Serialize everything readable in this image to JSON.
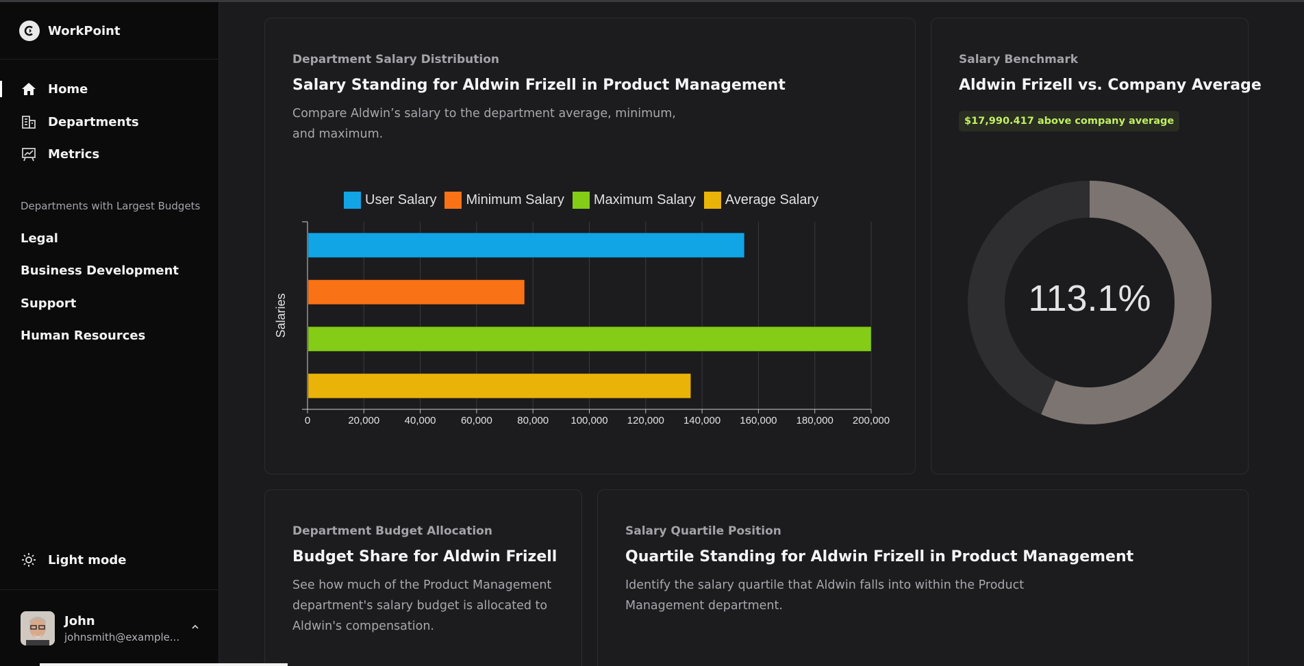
{
  "app": {
    "name": "WorkPoint"
  },
  "sidebar": {
    "nav": [
      {
        "label": "Home",
        "icon": "home-icon",
        "active": true
      },
      {
        "label": "Departments",
        "icon": "building-icon",
        "active": false
      },
      {
        "label": "Metrics",
        "icon": "chart-board-icon",
        "active": false
      }
    ],
    "section_label": "Departments with Largest Budgets",
    "departments": [
      "Legal",
      "Business Development",
      "Support",
      "Human Resources"
    ],
    "theme_toggle": "Light mode",
    "user": {
      "name": "John",
      "email": "johnsmith@example..."
    }
  },
  "cards": {
    "distribution": {
      "eyebrow": "Department Salary Distribution",
      "title": "Salary Standing for Aldwin Frizell in Product Management",
      "description": "Compare Aldwin’s salary to the department average, minimum, and maximum."
    },
    "benchmark": {
      "eyebrow": "Salary Benchmark",
      "title": "Aldwin Frizell vs. Company Average",
      "badge": "$17,990.417 above company average",
      "percent_label": "113.1%",
      "ring_fraction": 0.565,
      "colors": {
        "fill": "#7b7470",
        "track": "#2e2e31"
      }
    },
    "budget": {
      "eyebrow": "Department Budget Allocation",
      "title": "Budget Share for Aldwin Frizell",
      "description": "See how much of the Product Management department's salary budget is allocated to Aldwin's compensation."
    },
    "quartile": {
      "eyebrow": "Salary Quartile Position",
      "title": "Quartile Standing for Aldwin Frizell in Product Management",
      "description": "Identify the salary quartile that Aldwin falls into within the Product Management department."
    }
  },
  "chart_data": {
    "type": "bar",
    "orientation": "horizontal",
    "ylabel": "Salaries",
    "xlim": [
      0,
      200000
    ],
    "xticks": [
      "0",
      "20,000",
      "40,000",
      "60,000",
      "80,000",
      "100,000",
      "120,000",
      "140,000",
      "160,000",
      "180,000",
      "200,000"
    ],
    "grid": true,
    "legend_position": "top",
    "series": [
      {
        "name": "User Salary",
        "value": 155000,
        "color": "#11a5e6"
      },
      {
        "name": "Minimum Salary",
        "value": 77000,
        "color": "#f97316"
      },
      {
        "name": "Maximum Salary",
        "value": 200000,
        "color": "#84cc16"
      },
      {
        "name": "Average Salary",
        "value": 136000,
        "color": "#eab308"
      }
    ]
  }
}
